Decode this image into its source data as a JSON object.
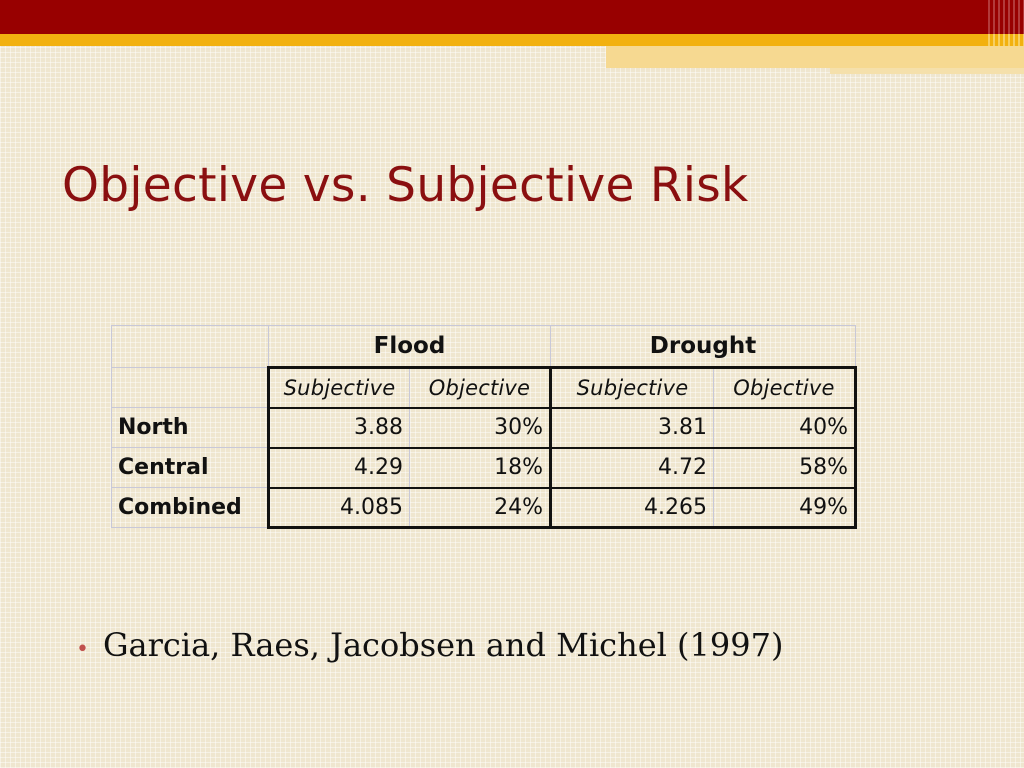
{
  "slide": {
    "title": "Objective vs. Subjective Risk",
    "accent_colors": {
      "top_band": "#980000",
      "gold_band": "#f2b10f",
      "title": "#8a0f10",
      "bullet": "#c0504d"
    }
  },
  "table": {
    "groups": [
      "Flood",
      "Drought"
    ],
    "subheaders": [
      "Subjective",
      "Objective",
      "Subjective",
      "Objective"
    ],
    "rows": [
      {
        "label": "North",
        "values": [
          "3.88",
          "30%",
          "3.81",
          "40%"
        ]
      },
      {
        "label": "Central",
        "values": [
          "4.29",
          "18%",
          "4.72",
          "58%"
        ]
      },
      {
        "label": "Combined",
        "values": [
          "4.085",
          "24%",
          "4.265",
          "49%"
        ]
      }
    ]
  },
  "bullets": [
    {
      "text": "Garcia, Raes, Jacobsen and Michel (1997)"
    }
  ],
  "bullet_glyph": "•"
}
